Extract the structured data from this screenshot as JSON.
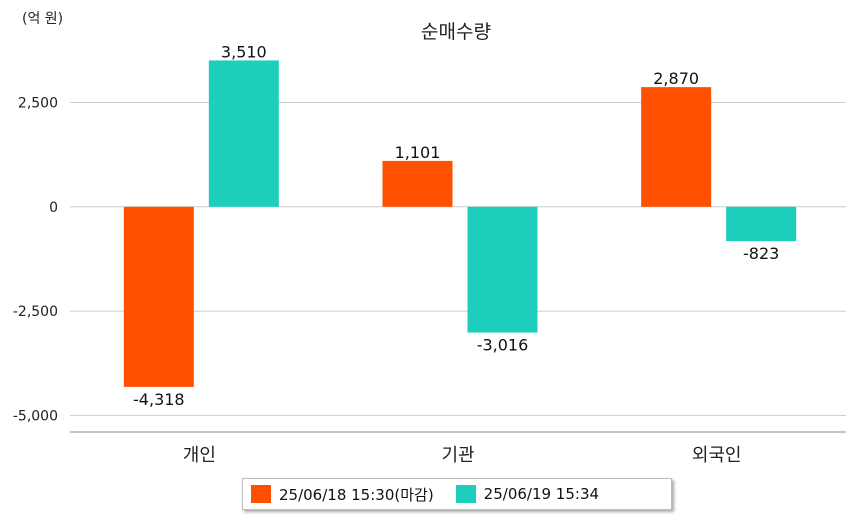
{
  "unit_label": "(억 원)",
  "colors": {
    "series1": "#ff5000",
    "series2": "#1ecebc",
    "grid": "#cccccc",
    "axis": "#888888"
  },
  "chart_data": {
    "type": "bar",
    "title": "순매수량",
    "xlabel": "",
    "ylabel": "",
    "categories": [
      "개인",
      "기관",
      "외국인"
    ],
    "series": [
      {
        "name": "25/06/18 15:30(마감)",
        "values": [
          -4318,
          1101,
          2870
        ],
        "labels": [
          "-4,318",
          "1,101",
          "2,870"
        ]
      },
      {
        "name": "25/06/19 15:34",
        "values": [
          3510,
          -3016,
          -823
        ],
        "labels": [
          "3,510",
          "-3,016",
          "-823"
        ]
      }
    ],
    "ylim": [
      -5400,
      4000
    ],
    "yticks": [
      2500,
      0,
      -2500,
      -5000
    ],
    "ytick_labels": [
      "2,500",
      "0",
      "-2,500",
      "-5,000"
    ],
    "grid": true,
    "legend_position": "bottom"
  }
}
